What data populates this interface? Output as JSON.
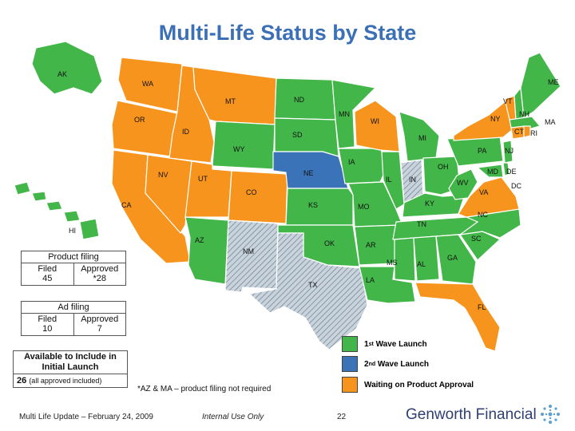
{
  "title": "Multi-Life Status by State",
  "colors": {
    "launch1": "#43b649",
    "launch2": "#3b73b9",
    "waiting": "#f7941d",
    "pending": "#b8c4cf"
  },
  "states": {
    "AK": "AK",
    "WA": "WA",
    "OR": "OR",
    "CA": "CA",
    "NV": "NV",
    "ID": "ID",
    "MT": "MT",
    "WY": "WY",
    "UT": "UT",
    "AZ": "AZ",
    "CO": "CO",
    "NM": "NM",
    "ND": "ND",
    "SD": "SD",
    "NE": "NE",
    "KS": "KS",
    "OK": "OK",
    "TX": "TX",
    "MN": "MN",
    "IA": "IA",
    "MO": "MO",
    "AR": "AR",
    "LA": "LA",
    "WI": "WI",
    "IL": "IL",
    "MI": "MI",
    "IN": "IN",
    "OH": "OH",
    "KY": "KY",
    "TN": "TN",
    "MS": "MS",
    "AL": "AL",
    "GA": "GA",
    "FL": "FL",
    "SC": "SC",
    "NC": "NC",
    "VA": "VA",
    "WV": "WV",
    "PA": "PA",
    "NY": "NY",
    "VT": "VT",
    "NH": "NH",
    "ME": "ME",
    "MA": "MA",
    "RI": "RI",
    "CT": "CT",
    "NJ": "NJ",
    "DE": "DE",
    "MD": "MD",
    "DC": "DC",
    "HI": "HI"
  },
  "product_filing": {
    "header": "Product filing",
    "filed_label": "Filed",
    "filed_value": "45",
    "approved_label": "Approved",
    "approved_value": "*28"
  },
  "ad_filing": {
    "header": "Ad filing",
    "filed_label": "Filed",
    "filed_value": "10",
    "approved_label": "Approved",
    "approved_value": "7"
  },
  "available": {
    "header_line1": "Available to Include in",
    "header_line2": "Initial Launch",
    "count": "26",
    "note": "(all approved included)"
  },
  "legend": {
    "first_prefix": "1",
    "first_sup": "st",
    "first_suffix": " Wave Launch",
    "second_prefix": "2",
    "second_sup": "nd",
    "second_suffix": " Wave Launch",
    "waiting": "Waiting on Product Approval"
  },
  "footnote": "*AZ & MA – product filing not required",
  "footer": {
    "left": "Multi Life Update – February 24, 2009",
    "center": "Internal Use Only",
    "page": "22",
    "brand": "Genworth Financial"
  }
}
